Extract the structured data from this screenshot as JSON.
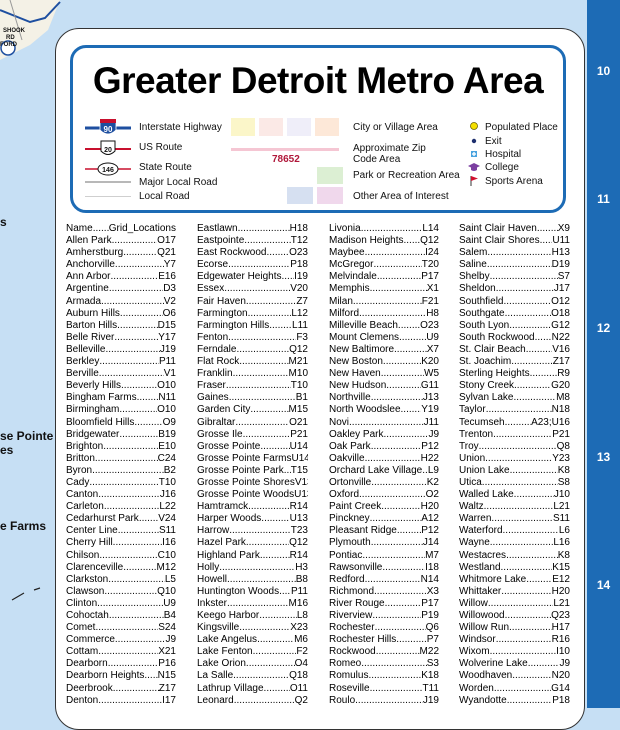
{
  "title": "Greater Detroit Metro Area",
  "grid_numbers": [
    "10",
    "11",
    "12",
    "13",
    "14"
  ],
  "map_labels": [
    "s",
    "se Pointe",
    "es",
    "e Farms"
  ],
  "road_labels": [
    "SHOOK",
    "RD",
    "FORD"
  ],
  "legend": {
    "interstate": {
      "shield": "90",
      "label": "Interstate Highway"
    },
    "us_route": {
      "shield": "20",
      "label": "US Route"
    },
    "state_route": {
      "shield": "146",
      "label": "State Route"
    },
    "major_local": "Major Local Road",
    "local": "Local Road",
    "city_village": "City or Village Area",
    "zip": {
      "sample": "78652",
      "label": "Approximate Zip Code Area"
    },
    "park": "Park or Recreation Area",
    "other_interest": "Other Area of Interest",
    "populated": "Populated Place",
    "exit": "Exit",
    "hospital": "Hospital",
    "college": "College",
    "sports": "Sports Arena"
  },
  "colors": {
    "grid_bar": "#1d6bb5",
    "water": "#c6dff4",
    "interstate_blue": "#1e4fa0",
    "interstate_red": "#c8102e",
    "zip_text": "#b0173a",
    "populated": "#f5e000",
    "hospital": "#4aa3df",
    "college": "#7b3fa0",
    "sports": "#d0102e"
  },
  "index_header": {
    "name": "Name",
    "grid": "Grid_Locations"
  },
  "index": [
    [
      [
        "Allen Park",
        "O17"
      ],
      [
        "Amherstburg",
        "Q21"
      ],
      [
        "Anchorville",
        "Y7"
      ],
      [
        "Ann Arbor",
        "E16"
      ],
      [
        "Argentine",
        "D3"
      ],
      [
        "Armada",
        "V2"
      ],
      [
        "Auburn Hills",
        "O6"
      ],
      [
        "Barton Hills",
        "D15"
      ],
      [
        "Belle River",
        "Y17"
      ],
      [
        "Belleville",
        "J19"
      ],
      [
        "Berkley",
        "P11"
      ],
      [
        "Berville",
        "V1"
      ],
      [
        "Beverly Hills",
        "O10"
      ],
      [
        "Bingham Farms",
        "N11"
      ],
      [
        "Birmingham",
        "O10"
      ],
      [
        "Bloomfield Hills",
        "O9"
      ],
      [
        "Bridgewater",
        "B19"
      ],
      [
        "Brighton",
        "E10"
      ],
      [
        "Britton",
        "C24"
      ],
      [
        "Byron",
        "B2"
      ],
      [
        "Cady",
        "T10"
      ],
      [
        "Canton",
        "J16"
      ],
      [
        "Carleton",
        "L22"
      ],
      [
        "Cedarhurst Park",
        "V24"
      ],
      [
        "Center Line",
        "S11"
      ],
      [
        "Cherry Hill",
        "I16"
      ],
      [
        "Chilson",
        "C10"
      ],
      [
        "Clarenceville",
        "M12"
      ],
      [
        "Clarkston",
        "L5"
      ],
      [
        "Clawson",
        "Q10"
      ],
      [
        "Clinton",
        "U9"
      ],
      [
        "Cohoctah",
        "B4"
      ],
      [
        "Comet",
        "S24"
      ],
      [
        "Commerce",
        "J9"
      ],
      [
        "Cottam",
        "X21"
      ],
      [
        "Dearborn",
        "P16"
      ],
      [
        "Dearborn Heights",
        "N15"
      ],
      [
        "Deerbrook",
        "Z17"
      ],
      [
        "Denton",
        "I17"
      ]
    ],
    [
      [
        "Eastlawn",
        "H18"
      ],
      [
        "Eastpointe",
        "T12"
      ],
      [
        "East Rockwood",
        "O23"
      ],
      [
        "Ecorse",
        "P18"
      ],
      [
        "Edgewater Heights",
        "I19"
      ],
      [
        "Essex",
        "V20"
      ],
      [
        "Fair Haven",
        "Z7"
      ],
      [
        "Farmington",
        "L12"
      ],
      [
        "Farmington Hills",
        "L11"
      ],
      [
        "Fenton",
        "F3"
      ],
      [
        "Ferndale",
        "Q12"
      ],
      [
        "Flat Rock",
        "M21"
      ],
      [
        "Franklin",
        "M10"
      ],
      [
        "Fraser",
        "T10"
      ],
      [
        "Gaines",
        "B1"
      ],
      [
        "Garden City",
        "M15"
      ],
      [
        "Gibraltar",
        "O21"
      ],
      [
        "Grosse Ile",
        "P21"
      ],
      [
        "Grosse Pointe",
        "U14"
      ],
      [
        "Grosse Pointe Farms",
        "U14"
      ],
      [
        "Grosse Pointe Park",
        "T15"
      ],
      [
        "Grosse Pointe Shores",
        "V13"
      ],
      [
        "Grosse Pointe Woods",
        "U13"
      ],
      [
        "Hamtramck",
        "R14"
      ],
      [
        "Harper Woods",
        "U13"
      ],
      [
        "Harrow",
        "T23"
      ],
      [
        "Hazel Park",
        "Q12"
      ],
      [
        "Highland Park",
        "R14"
      ],
      [
        "Holly",
        "H3"
      ],
      [
        "Howell",
        "B8"
      ],
      [
        "Huntington Woods",
        "P11"
      ],
      [
        "Inkster",
        "M16"
      ],
      [
        "Keego Harbor",
        "L8"
      ],
      [
        "Kingsville",
        "X23"
      ],
      [
        "Lake Angelus",
        "M6"
      ],
      [
        "Lake Fenton",
        "F2"
      ],
      [
        "Lake Orion",
        "O4"
      ],
      [
        "La Salle",
        "Q18"
      ],
      [
        "Lathrup Village",
        "O11"
      ],
      [
        "Leonard",
        "Q2"
      ]
    ],
    [
      [
        "Livonia",
        "L14"
      ],
      [
        "Madison Heights",
        "Q12"
      ],
      [
        "Maybee",
        "I24"
      ],
      [
        "McGregor",
        "T20"
      ],
      [
        "Melvindale",
        "P17"
      ],
      [
        "Memphis",
        "X1"
      ],
      [
        "Milan",
        "F21"
      ],
      [
        "Milford",
        "H8"
      ],
      [
        "Milleville Beach",
        "O23"
      ],
      [
        "Mount Clemens",
        "U9"
      ],
      [
        "New Baltimore",
        "X7"
      ],
      [
        "New Boston",
        "K20"
      ],
      [
        "New Haven",
        "W5"
      ],
      [
        "New Hudson",
        "G11"
      ],
      [
        "Northville",
        "J13"
      ],
      [
        "North Woodslee",
        "Y19"
      ],
      [
        "Novi",
        "J11"
      ],
      [
        "Oakley Park",
        "J9"
      ],
      [
        "Oak Park",
        "P12"
      ],
      [
        "Oakville",
        "H22"
      ],
      [
        "Orchard Lake Village",
        "L9"
      ],
      [
        "Ortonville",
        "K2"
      ],
      [
        "Oxford",
        "O2"
      ],
      [
        "Paint Creek",
        "H20"
      ],
      [
        "Pinckney",
        "A12"
      ],
      [
        "Pleasant Ridge",
        "P12"
      ],
      [
        "Plymouth",
        "J14"
      ],
      [
        "Pontiac",
        "M7"
      ],
      [
        "Rawsonville",
        "I18"
      ],
      [
        "Redford",
        "N14"
      ],
      [
        "Richmond",
        "X3"
      ],
      [
        "River Rouge",
        "P17"
      ],
      [
        "Riverview",
        "P19"
      ],
      [
        "Rochester",
        "Q6"
      ],
      [
        "Rochester Hills",
        "P7"
      ],
      [
        "Rockwood",
        "M22"
      ],
      [
        "Romeo",
        "S3"
      ],
      [
        "Romulus",
        "K18"
      ],
      [
        "Roseville",
        "T11"
      ],
      [
        "Roulo",
        "J19"
      ]
    ],
    [
      [
        "Saint Clair Haven",
        "X9"
      ],
      [
        "Saint Clair Shores",
        "U11"
      ],
      [
        "Salem",
        "H13"
      ],
      [
        "Saline",
        "D19"
      ],
      [
        "Shelby",
        "S7"
      ],
      [
        "Sheldon",
        "J17"
      ],
      [
        "Southfield",
        "O12"
      ],
      [
        "Southgate",
        "O18"
      ],
      [
        "South Lyon",
        "G12"
      ],
      [
        "South Rockwood",
        "N22"
      ],
      [
        "St. Clair Beach",
        "V16"
      ],
      [
        "St. Joachim",
        "Z17"
      ],
      [
        "Sterling Heights",
        "R9"
      ],
      [
        "Stony Creek",
        "G20"
      ],
      [
        "Sylvan Lake",
        "M8"
      ],
      [
        "Taylor",
        "N18"
      ],
      [
        "Tecumseh",
        "A23;U16"
      ],
      [
        "Trenton",
        "P21"
      ],
      [
        "Troy",
        "Q8"
      ],
      [
        "Union",
        "Y23"
      ],
      [
        "Union Lake",
        "K8"
      ],
      [
        "Utica",
        "S8"
      ],
      [
        "Walled Lake",
        "J10"
      ],
      [
        "Waltz",
        "L21"
      ],
      [
        "Warren",
        "S11"
      ],
      [
        "Waterford",
        "L6"
      ],
      [
        "Wayne",
        "L16"
      ],
      [
        "Westacres",
        "K8"
      ],
      [
        "Westland",
        "K15"
      ],
      [
        "Whitmore Lake",
        "E12"
      ],
      [
        "Whittaker",
        "H20"
      ],
      [
        "Willow",
        "L21"
      ],
      [
        "Willowood",
        "Q23"
      ],
      [
        "Willow Run",
        "H17"
      ],
      [
        "Windsor",
        "R16"
      ],
      [
        "Wixom",
        "I10"
      ],
      [
        "Wolverine Lake",
        "J9"
      ],
      [
        "Woodhaven",
        "N20"
      ],
      [
        "Worden",
        "G14"
      ],
      [
        "Wyandotte",
        "P18"
      ]
    ]
  ]
}
